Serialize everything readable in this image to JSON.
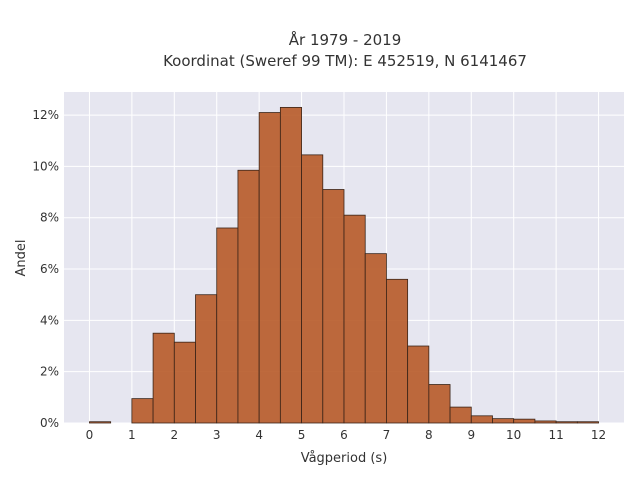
{
  "chart_data": {
    "type": "bar",
    "title": "År 1979 - 2019",
    "subtitle": "Koordinat (Sweref 99 TM): E 452519, N 6141467",
    "xlabel": "Vågperiod (s)",
    "ylabel": "Andel",
    "xlim": [
      -0.6,
      12.6
    ],
    "ylim": [
      0,
      12.9
    ],
    "xticks": [
      0,
      1,
      2,
      3,
      4,
      5,
      6,
      7,
      8,
      9,
      10,
      11,
      12
    ],
    "xtick_labels": [
      "0",
      "1",
      "2",
      "3",
      "4",
      "5",
      "6",
      "7",
      "8",
      "9",
      "10",
      "11",
      "12"
    ],
    "yticks": [
      0,
      2,
      4,
      6,
      8,
      10,
      12
    ],
    "ytick_labels": [
      "0%",
      "2%",
      "4%",
      "6%",
      "8%",
      "10%",
      "12%"
    ],
    "bin_width": 0.5,
    "bins": [
      0,
      0.5,
      1,
      1.5,
      2,
      2.5,
      3,
      3.5,
      4,
      4.5,
      5,
      5.5,
      6,
      6.5,
      7,
      7.5,
      8,
      8.5,
      9,
      9.5,
      10,
      10.5,
      11,
      11.5
    ],
    "values": [
      0.05,
      0.0,
      0.95,
      3.5,
      3.15,
      5.0,
      7.6,
      9.85,
      12.1,
      12.3,
      10.45,
      9.1,
      8.1,
      6.6,
      5.6,
      3.0,
      1.5,
      0.62,
      0.28,
      0.17,
      0.15,
      0.08,
      0.05,
      0.05
    ],
    "grid": true,
    "legend": "none",
    "colors": {
      "bar_fill": "#b85d2c",
      "bar_stroke": "#3a2418",
      "plot_bg": "#e6e6f0",
      "grid": "#ffffff"
    }
  }
}
